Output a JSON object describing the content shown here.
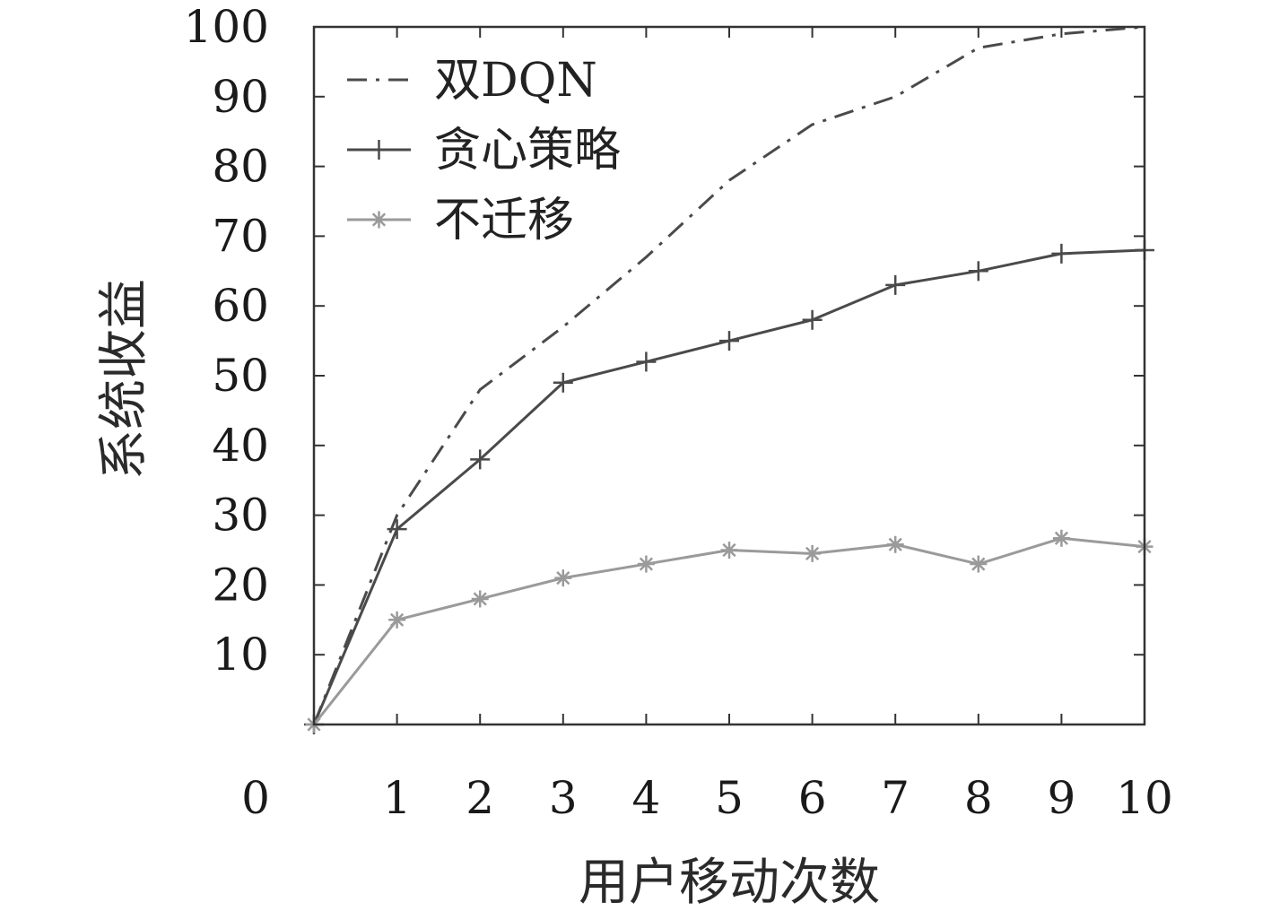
{
  "chart_data": {
    "type": "line",
    "title": "",
    "xlabel": "用户移动次数",
    "ylabel": "系统收益",
    "x": [
      0,
      1,
      2,
      3,
      4,
      5,
      6,
      7,
      8,
      9,
      10
    ],
    "xlim": [
      0,
      10
    ],
    "ylim": [
      0,
      100
    ],
    "x_ticks": [
      "1",
      "2",
      "3",
      "4",
      "5",
      "6",
      "7",
      "8",
      "9",
      "10"
    ],
    "y_ticks": [
      "10",
      "20",
      "30",
      "40",
      "50",
      "60",
      "70",
      "80",
      "90",
      "100"
    ],
    "origin_label": "0",
    "grid": false,
    "legend_position": "top-left",
    "series": [
      {
        "name": "双DQN",
        "style": "dash-dot",
        "marker": "none",
        "color": "#4a4a4a",
        "values": [
          0,
          30,
          48,
          57,
          67,
          78,
          86,
          90,
          97,
          99,
          100
        ]
      },
      {
        "name": "贪心策略",
        "style": "solid",
        "marker": "plus",
        "color": "#4a4a4a",
        "values": [
          0,
          28,
          38,
          49,
          52,
          55,
          58,
          63,
          65,
          67.5,
          68
        ]
      },
      {
        "name": "不迁移",
        "style": "solid",
        "marker": "star",
        "color": "#9a9a9a",
        "values": [
          0,
          15,
          18,
          21,
          23,
          25,
          24.5,
          25.8,
          23,
          26.7,
          25.5
        ]
      }
    ]
  }
}
